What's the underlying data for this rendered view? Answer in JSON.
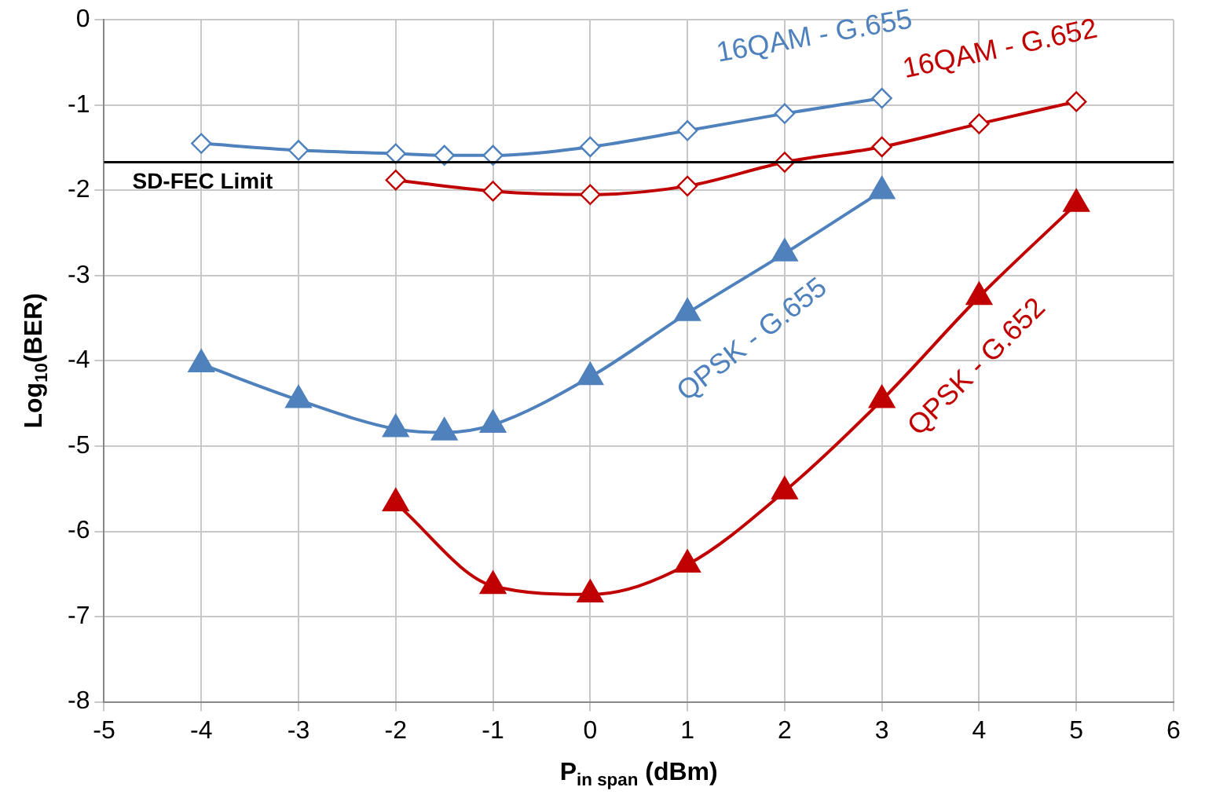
{
  "chart_data": {
    "type": "line",
    "xlabel": "P$_{in span}$ (dBm)",
    "ylabel": "Log$_{10}$(BER)",
    "xlim": [
      -5,
      6
    ],
    "xticks": [
      -5,
      -4,
      -3,
      -2,
      -1,
      0,
      1,
      2,
      3,
      4,
      5,
      6
    ],
    "ylim": [
      -8,
      0
    ],
    "yticks": [
      -8,
      -7,
      -6,
      -5,
      -4,
      -3,
      -2,
      -1,
      0
    ],
    "grid": true,
    "legend": false,
    "series": [
      {
        "name": "16QAM - G.655",
        "color": "#4f81bd",
        "marker": "diamond",
        "x": [
          -4,
          -3,
          -2,
          -1.5,
          -1,
          0,
          1,
          2,
          3
        ],
        "values": [
          -1.45,
          -1.53,
          -1.57,
          -1.59,
          -1.59,
          -1.49,
          -1.3,
          -1.1,
          -0.92
        ]
      },
      {
        "name": "16QAM - G.652",
        "color": "#c00000",
        "marker": "diamond",
        "x": [
          -2,
          -1,
          0,
          1,
          2,
          3,
          4,
          5
        ],
        "values": [
          -1.88,
          -2.01,
          -2.05,
          -1.95,
          -1.67,
          -1.49,
          -1.22,
          -0.96
        ]
      },
      {
        "name": "QPSK - G.655",
        "color": "#4f81bd",
        "marker": "triangle",
        "x": [
          -4,
          -3,
          -2,
          -1.5,
          -1,
          0,
          1,
          2,
          3
        ],
        "values": [
          -4.04,
          -4.46,
          -4.8,
          -4.84,
          -4.75,
          -4.19,
          -3.44,
          -2.74,
          -2.01
        ]
      },
      {
        "name": "QPSK - G.652",
        "color": "#c00000",
        "marker": "triangle",
        "x": [
          -2,
          -1,
          0,
          1,
          2,
          3,
          4,
          5
        ],
        "values": [
          -5.67,
          -6.64,
          -6.74,
          -6.39,
          -5.53,
          -4.46,
          -3.25,
          -2.16
        ]
      }
    ],
    "ref_lines": [
      {
        "axis": "y",
        "value": -1.67,
        "label": "SD-FEC Limit",
        "color": "#000000"
      }
    ]
  }
}
